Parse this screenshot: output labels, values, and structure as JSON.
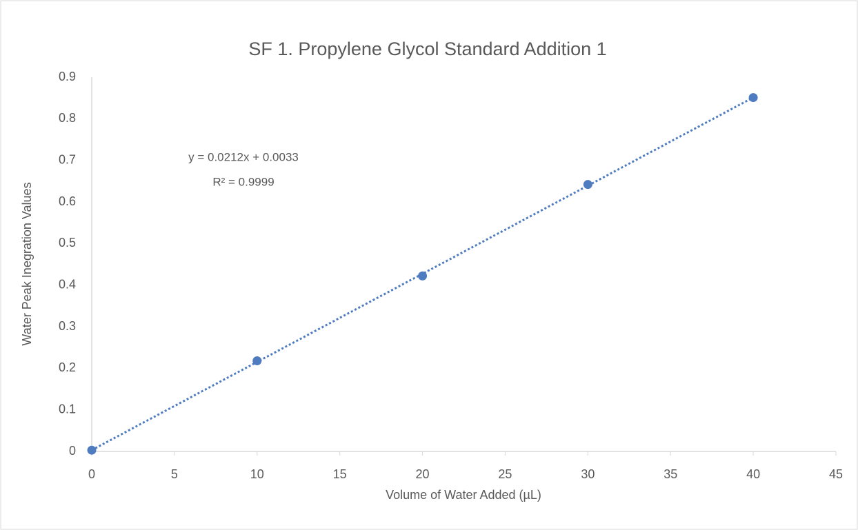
{
  "chart_data": {
    "type": "scatter",
    "title": "SF 1. Propylene Glycol Standard Addition 1",
    "x_label": "Volume of Water Added (µL)",
    "y_label": "Water Peak Inegration Values",
    "annotations": [
      "y = 0.0212x + 0.0033",
      "R² = 0.9999"
    ],
    "series": [
      {
        "name": "Water Peak Inegration Values",
        "color": "#4f7cc0",
        "x": [
          0,
          10,
          20,
          30,
          40
        ],
        "values": [
          0.003,
          0.218,
          0.422,
          0.642,
          0.851
        ]
      }
    ],
    "trendline": true,
    "xlim": [
      0,
      45
    ],
    "xticks": [
      0,
      5,
      10,
      15,
      20,
      25,
      30,
      35,
      40,
      45
    ],
    "ylim": [
      0,
      0.9
    ],
    "yticks": [
      0,
      0.1,
      0.2,
      0.3,
      0.4,
      0.5,
      0.6,
      0.7,
      0.8,
      0.9
    ],
    "grid": false
  }
}
